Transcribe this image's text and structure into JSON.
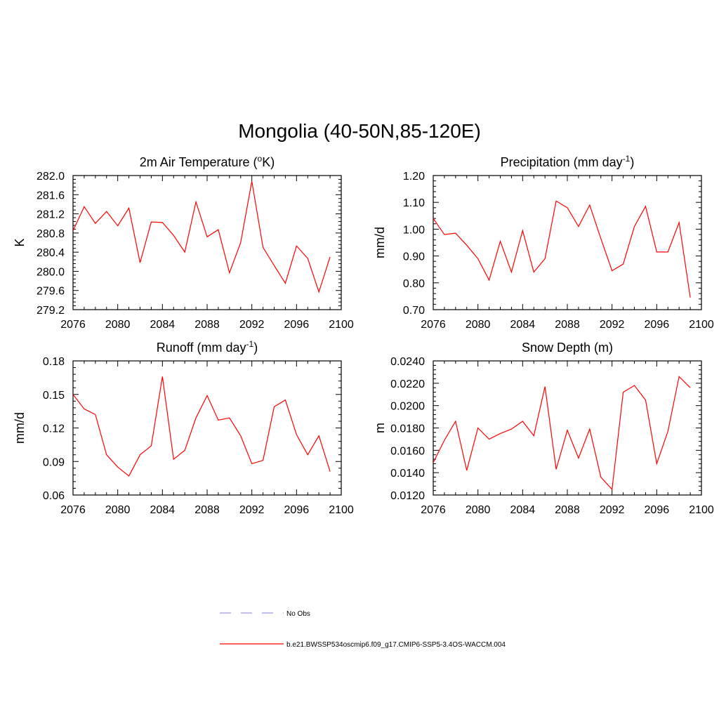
{
  "figure": {
    "title": "Mongolia (40-50N,85-120E)"
  },
  "legend": {
    "entries": [
      {
        "label": "No Obs",
        "color": "#9999e6",
        "style": "dashed"
      },
      {
        "label": "b.e21.BWSSP534oscmip6.f09_g17.CMIP6-SSP5-3.4OS-WACCM.004",
        "color": "#ff0000",
        "style": "solid"
      }
    ]
  },
  "chart_data": [
    {
      "type": "line",
      "title": "2m Air Temperature (oK)",
      "title_parts": {
        "pre": "2m Air Temperature (",
        "sup": "o",
        "post": "K)"
      },
      "xlabel": "",
      "ylabel": "K",
      "xlim": [
        2076,
        2100
      ],
      "ylim": [
        279.2,
        282.0
      ],
      "xticks": [
        "2076",
        "2080",
        "2084",
        "2088",
        "2092",
        "2096",
        "2100"
      ],
      "yticks": [
        "279.2",
        "279.6",
        "280.0",
        "280.4",
        "280.8",
        "281.2",
        "281.6",
        "282.0"
      ],
      "series": [
        {
          "color": "#ff0000",
          "x": [
            2076,
            2077,
            2078,
            2079,
            2080,
            2081,
            2082,
            2083,
            2084,
            2085,
            2086,
            2087,
            2088,
            2089,
            2090,
            2091,
            2092,
            2093,
            2094,
            2095,
            2096,
            2097,
            2098,
            2099
          ],
          "values": [
            280.85,
            281.35,
            281.0,
            281.25,
            280.95,
            281.32,
            280.18,
            281.03,
            281.02,
            280.75,
            280.4,
            281.45,
            280.72,
            280.87,
            279.97,
            280.6,
            281.88,
            280.5,
            280.12,
            279.75,
            280.53,
            280.27,
            279.57,
            280.3
          ]
        }
      ]
    },
    {
      "type": "line",
      "title": "Precipitation (mm day-1)",
      "title_parts": {
        "pre": "Precipitation (mm day",
        "sup": "-1",
        "post": ")"
      },
      "xlabel": "",
      "ylabel": "mm/d",
      "xlim": [
        2076,
        2100
      ],
      "ylim": [
        0.7,
        1.2
      ],
      "xticks": [
        "2076",
        "2080",
        "2084",
        "2088",
        "2092",
        "2096",
        "2100"
      ],
      "yticks": [
        "0.70",
        "0.80",
        "0.90",
        "1.00",
        "1.10",
        "1.20"
      ],
      "series": [
        {
          "color": "#ff0000",
          "x": [
            2076,
            2077,
            2078,
            2079,
            2080,
            2081,
            2082,
            2083,
            2084,
            2085,
            2086,
            2087,
            2088,
            2089,
            2090,
            2091,
            2092,
            2093,
            2094,
            2095,
            2096,
            2097,
            2098,
            2099
          ],
          "values": [
            1.04,
            0.98,
            0.985,
            0.94,
            0.89,
            0.81,
            0.955,
            0.84,
            0.995,
            0.84,
            0.89,
            1.105,
            1.08,
            1.01,
            1.09,
            0.965,
            0.845,
            0.87,
            1.01,
            1.085,
            0.915,
            0.915,
            1.025,
            0.745
          ]
        }
      ]
    },
    {
      "type": "line",
      "title": "Runoff (mm day-1)",
      "title_parts": {
        "pre": "Runoff (mm day",
        "sup": "-1",
        "post": ")"
      },
      "xlabel": "",
      "ylabel": "mm/d",
      "xlim": [
        2076,
        2100
      ],
      "ylim": [
        0.06,
        0.18
      ],
      "xticks": [
        "2076",
        "2080",
        "2084",
        "2088",
        "2092",
        "2096",
        "2100"
      ],
      "yticks": [
        "0.06",
        "0.09",
        "0.12",
        "0.15",
        "0.18"
      ],
      "series": [
        {
          "color": "#ff0000",
          "x": [
            2076,
            2077,
            2078,
            2079,
            2080,
            2081,
            2082,
            2083,
            2084,
            2085,
            2086,
            2087,
            2088,
            2089,
            2090,
            2091,
            2092,
            2093,
            2094,
            2095,
            2096,
            2097,
            2098,
            2099
          ],
          "values": [
            0.15,
            0.137,
            0.132,
            0.096,
            0.085,
            0.077,
            0.096,
            0.104,
            0.166,
            0.092,
            0.1,
            0.129,
            0.149,
            0.127,
            0.129,
            0.113,
            0.088,
            0.091,
            0.139,
            0.145,
            0.114,
            0.096,
            0.113,
            0.081
          ]
        }
      ]
    },
    {
      "type": "line",
      "title": "Snow Depth (m)",
      "title_parts": {
        "pre": "Snow Depth (m)",
        "sup": "",
        "post": ""
      },
      "xlabel": "",
      "ylabel": "m",
      "xlim": [
        2076,
        2100
      ],
      "ylim": [
        0.012,
        0.024
      ],
      "xticks": [
        "2076",
        "2080",
        "2084",
        "2088",
        "2092",
        "2096",
        "2100"
      ],
      "yticks": [
        "0.0120",
        "0.0140",
        "0.0160",
        "0.0180",
        "0.0200",
        "0.0220",
        "0.0240"
      ],
      "series": [
        {
          "color": "#ff0000",
          "x": [
            2076,
            2077,
            2078,
            2079,
            2080,
            2081,
            2082,
            2083,
            2084,
            2085,
            2086,
            2087,
            2088,
            2089,
            2090,
            2091,
            2092,
            2093,
            2094,
            2095,
            2096,
            2097,
            2098,
            2099
          ],
          "values": [
            0.0149,
            0.0169,
            0.0186,
            0.0142,
            0.018,
            0.017,
            0.0175,
            0.0179,
            0.0186,
            0.0173,
            0.0217,
            0.0143,
            0.0178,
            0.0153,
            0.0179,
            0.0136,
            0.0125,
            0.0212,
            0.0218,
            0.0205,
            0.0148,
            0.0177,
            0.0226,
            0.0216
          ]
        }
      ]
    }
  ]
}
